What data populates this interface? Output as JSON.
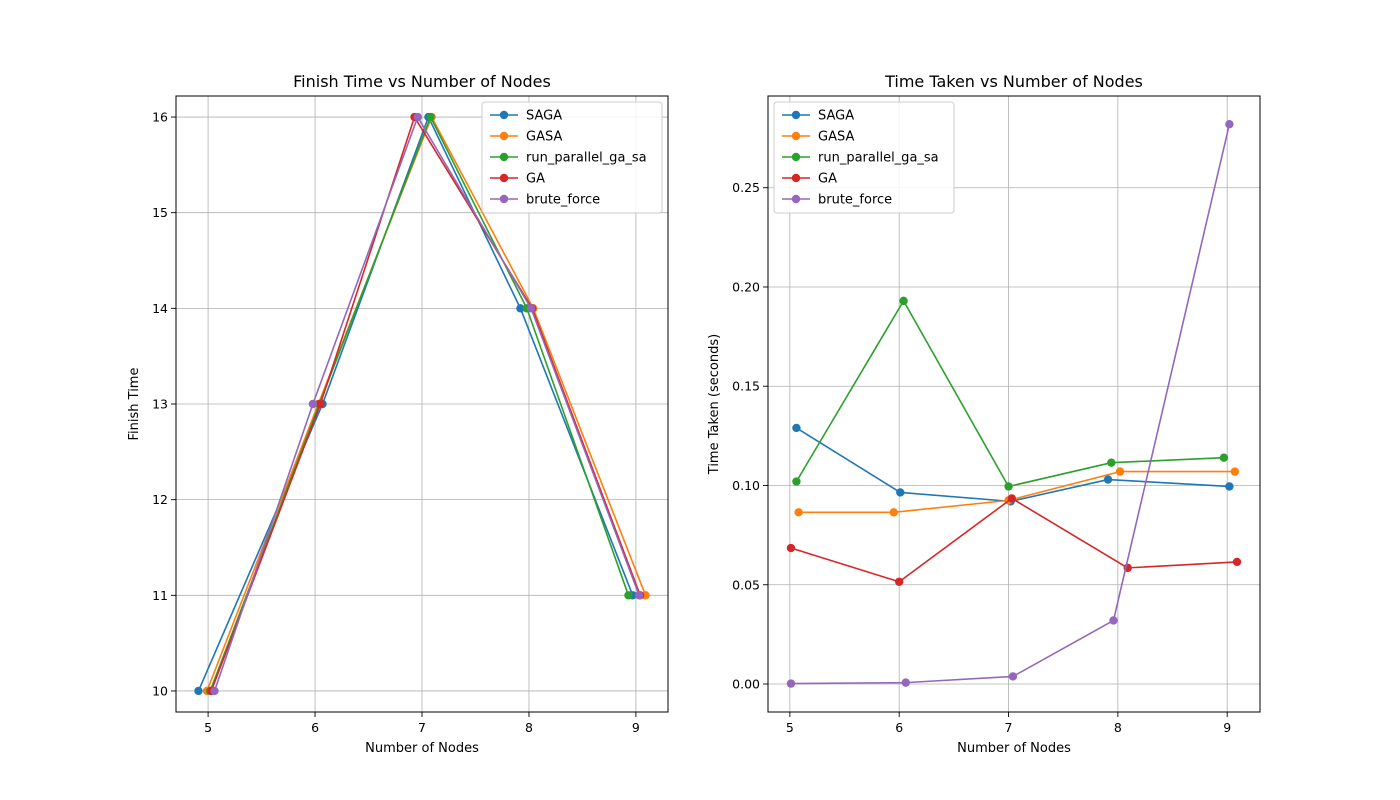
{
  "chart_data": [
    {
      "type": "line",
      "title": "Finish Time vs Number of Nodes",
      "xlabel": "Number of Nodes",
      "ylabel": "Finish Time",
      "xlim": [
        4.7,
        9.3
      ],
      "ylim": [
        9.78,
        16.22
      ],
      "xticks": [
        5,
        6,
        7,
        8,
        9
      ],
      "yticks": [
        10,
        11,
        12,
        13,
        14,
        15,
        16
      ],
      "ytick_labels": [
        "10",
        "11",
        "12",
        "13",
        "14",
        "15",
        "16"
      ],
      "grid": true,
      "legend_position": "top-right",
      "series": [
        {
          "name": "SAGA",
          "color": "#1f77b4",
          "x": [
            4.91,
            6.07,
            7.06,
            7.92,
            8.97
          ],
          "y": [
            10,
            13,
            16,
            14,
            11
          ]
        },
        {
          "name": "GASA",
          "color": "#ff7f0e",
          "x": [
            4.99,
            6.03,
            7.09,
            8.04,
            9.09
          ],
          "y": [
            10,
            13,
            16,
            14,
            11
          ]
        },
        {
          "name": "run_parallel_ga_sa",
          "color": "#2ca02c",
          "x": [
            5.02,
            6.04,
            7.08,
            7.98,
            8.93
          ],
          "y": [
            10,
            13,
            16,
            14,
            11
          ]
        },
        {
          "name": "GA",
          "color": "#d62728",
          "x": [
            5.03,
            6.05,
            6.93,
            8.03,
            9.04
          ],
          "y": [
            10,
            13,
            16,
            14,
            11
          ]
        },
        {
          "name": "brute_force",
          "color": "#9467bd",
          "x": [
            5.06,
            5.98,
            6.96,
            8.02,
            9.03
          ],
          "y": [
            10,
            13,
            16,
            14,
            11
          ]
        }
      ]
    },
    {
      "type": "line",
      "title": "Time Taken vs Number of Nodes",
      "xlabel": "Number of Nodes",
      "ylabel": "Time Taken (seconds)",
      "xlim": [
        4.8,
        9.3
      ],
      "ylim": [
        -0.0141,
        0.2962
      ],
      "xticks": [
        5,
        6,
        7,
        8,
        9
      ],
      "yticks": [
        0.0,
        0.05,
        0.1,
        0.15,
        0.2,
        0.25
      ],
      "ytick_labels": [
        "0.00",
        "0.05",
        "0.10",
        "0.15",
        "0.20",
        "0.25"
      ],
      "grid": true,
      "legend_position": "top-left",
      "series": [
        {
          "name": "SAGA",
          "color": "#1f77b4",
          "x": [
            5.06,
            6.01,
            7.02,
            7.91,
            9.02
          ],
          "y": [
            0.129,
            0.0965,
            0.092,
            0.103,
            0.0995
          ]
        },
        {
          "name": "GASA",
          "color": "#ff7f0e",
          "x": [
            5.08,
            5.95,
            7.0,
            8.02,
            9.07
          ],
          "y": [
            0.0865,
            0.0865,
            0.0925,
            0.107,
            0.107
          ]
        },
        {
          "name": "run_parallel_ga_sa",
          "color": "#2ca02c",
          "x": [
            5.06,
            6.04,
            7.0,
            7.94,
            8.97
          ],
          "y": [
            0.102,
            0.193,
            0.0995,
            0.1115,
            0.114
          ]
        },
        {
          "name": "GA",
          "color": "#d62728",
          "x": [
            5.01,
            6.0,
            7.03,
            8.09,
            9.09
          ],
          "y": [
            0.0685,
            0.0515,
            0.0935,
            0.0585,
            0.0615
          ]
        },
        {
          "name": "brute_force",
          "color": "#9467bd",
          "x": [
            5.01,
            6.06,
            7.04,
            7.96,
            9.02
          ],
          "y": [
            0.0002,
            0.0007,
            0.0038,
            0.032,
            0.282
          ]
        }
      ]
    }
  ]
}
